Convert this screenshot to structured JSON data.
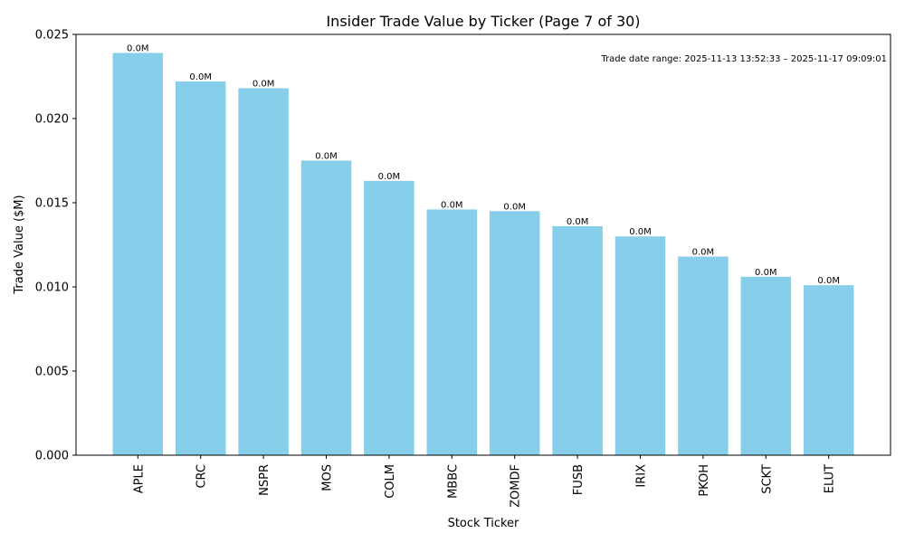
{
  "chart_data": {
    "type": "bar",
    "title": "Insider Trade Value by Ticker (Page 7 of 30)",
    "xlabel": "Stock Ticker",
    "ylabel": "Trade Value ($M)",
    "categories": [
      "APLE",
      "CRC",
      "NSPR",
      "MOS",
      "COLM",
      "MBBC",
      "ZOMDF",
      "FUSB",
      "IRIX",
      "PKOH",
      "SCKT",
      "ELUT"
    ],
    "values": [
      0.0239,
      0.0222,
      0.0218,
      0.0175,
      0.0163,
      0.0146,
      0.0145,
      0.0136,
      0.013,
      0.0118,
      0.0106,
      0.0101
    ],
    "data_labels": [
      "0.0M",
      "0.0M",
      "0.0M",
      "0.0M",
      "0.0M",
      "0.0M",
      "0.0M",
      "0.0M",
      "0.0M",
      "0.0M",
      "0.0M",
      "0.0M"
    ],
    "ylim": [
      0,
      0.025
    ],
    "yticks": [
      "0.000",
      "0.005",
      "0.010",
      "0.015",
      "0.020",
      "0.025"
    ],
    "bar_color": "#87CEEB",
    "grid": false,
    "annotation": "Trade date range: 2025-11-13 13:52:33 – 2025-11-17 09:09:01"
  }
}
